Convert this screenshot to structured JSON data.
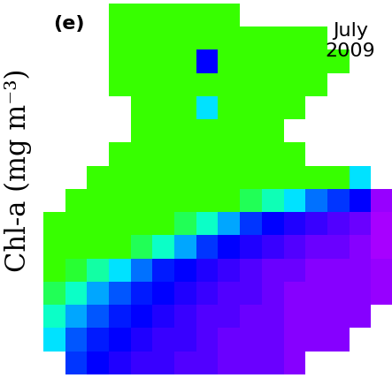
{
  "chart_data": {
    "type": "heatmap",
    "panel_label": "(e)",
    "annotation": "July\n2009",
    "colorbar_label": "Chl-a (mg m⁻³)",
    "color_range": [
      0,
      6
    ],
    "tick_labels": false,
    "cells": [
      [
        null,
        null,
        null,
        3.5,
        3.5,
        3.5,
        3.5,
        3.5,
        3.5,
        null,
        null,
        null,
        null,
        null,
        null,
        null
      ],
      [
        null,
        null,
        null,
        3.5,
        3.5,
        3.5,
        3.5,
        3.5,
        3.5,
        3.5,
        3.5,
        3.5,
        3.5,
        null,
        null,
        null
      ],
      [
        null,
        null,
        null,
        3.5,
        3.5,
        3.5,
        3.5,
        1.2,
        3.5,
        3.5,
        3.5,
        3.5,
        3.5,
        3.5,
        null,
        null
      ],
      [
        null,
        null,
        null,
        3.5,
        3.5,
        3.5,
        3.5,
        3.5,
        3.5,
        3.5,
        3.5,
        3.5,
        3.5,
        null,
        null,
        null
      ],
      [
        null,
        null,
        null,
        null,
        3.5,
        3.5,
        3.5,
        2.0,
        3.5,
        3.5,
        3.5,
        3.5,
        null,
        null,
        null,
        null
      ],
      [
        null,
        null,
        null,
        null,
        3.5,
        3.5,
        3.5,
        3.5,
        3.5,
        3.5,
        3.5,
        null,
        null,
        null,
        null,
        null
      ],
      [
        null,
        null,
        null,
        3.5,
        3.5,
        3.5,
        3.5,
        3.5,
        3.5,
        3.5,
        3.5,
        3.5,
        null,
        null,
        null,
        null
      ],
      [
        null,
        null,
        3.5,
        3.5,
        3.5,
        3.5,
        3.5,
        3.5,
        3.5,
        3.5,
        3.5,
        3.5,
        3.5,
        3.5,
        2.0,
        null
      ],
      [
        null,
        3.5,
        3.5,
        3.5,
        3.5,
        3.5,
        3.5,
        3.5,
        3.5,
        3.0,
        2.5,
        2.0,
        1.6,
        1.4,
        1.2,
        0.6
      ],
      [
        3.5,
        3.5,
        3.5,
        3.5,
        3.5,
        3.5,
        3.0,
        2.4,
        1.8,
        1.4,
        1.2,
        1.1,
        1.0,
        0.9,
        0.8,
        0.5
      ],
      [
        3.5,
        3.5,
        3.5,
        3.5,
        3.0,
        2.4,
        1.8,
        1.4,
        1.2,
        1.1,
        1.0,
        0.9,
        0.8,
        0.8,
        0.7,
        0.5
      ],
      [
        3.5,
        3.2,
        2.6,
        2.0,
        1.6,
        1.3,
        1.2,
        1.1,
        1.0,
        0.9,
        0.8,
        0.8,
        0.7,
        0.7,
        0.7,
        0.6
      ],
      [
        3.0,
        2.4,
        1.8,
        1.5,
        1.3,
        1.2,
        1.1,
        1.0,
        0.9,
        0.9,
        0.8,
        0.7,
        0.7,
        0.7,
        0.7,
        0.6
      ],
      [
        2.4,
        1.8,
        1.5,
        1.3,
        1.2,
        1.1,
        1.0,
        0.9,
        0.9,
        0.8,
        0.8,
        0.7,
        0.7,
        0.7,
        0.7,
        null
      ],
      [
        2.0,
        1.5,
        1.3,
        1.2,
        1.1,
        1.0,
        1.0,
        0.9,
        0.8,
        0.8,
        0.8,
        0.7,
        0.7,
        0.7,
        null,
        null
      ],
      [
        null,
        1.4,
        1.2,
        1.1,
        1.0,
        1.0,
        0.9,
        0.9,
        0.8,
        0.8,
        0.8,
        0.7,
        null,
        null,
        null,
        null
      ]
    ]
  }
}
